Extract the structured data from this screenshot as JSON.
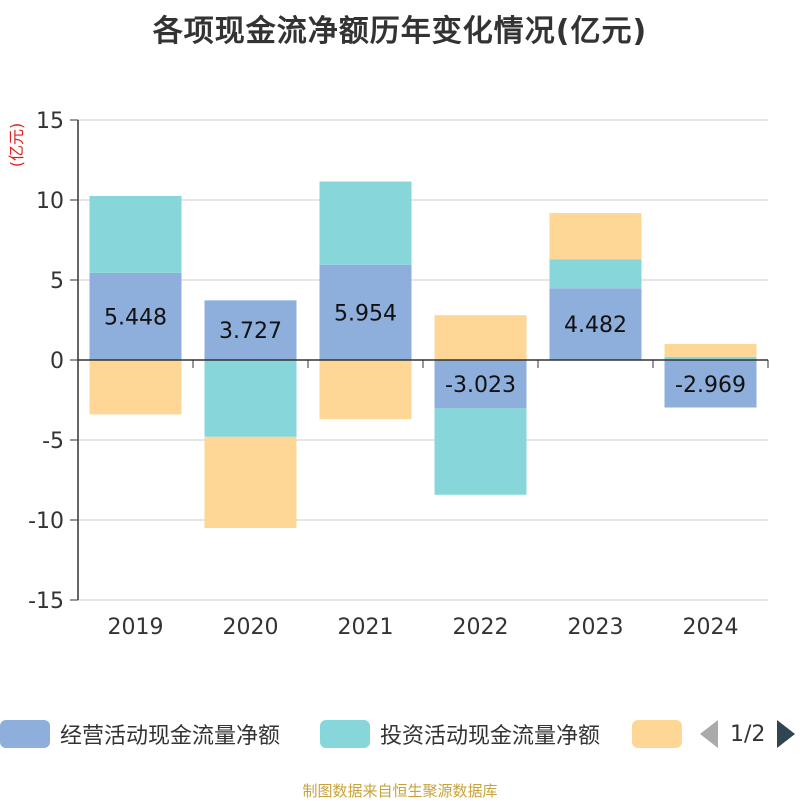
{
  "title": "各项现金流净额历年变化情况(亿元)",
  "chart_data": {
    "type": "bar",
    "stacked": true,
    "title": "各项现金流净额历年变化情况(亿元)",
    "ylabel": "(亿元)",
    "xlabel": "",
    "ylim": [
      -15,
      15
    ],
    "yticks": [
      15,
      10,
      5,
      0,
      -5,
      -10,
      -15
    ],
    "grid": true,
    "categories": [
      "2019",
      "2020",
      "2021",
      "2022",
      "2023",
      "2024"
    ],
    "series": [
      {
        "name": "经营活动现金流量净额",
        "color": "#8eaedb",
        "values": [
          5.448,
          3.727,
          5.954,
          -3.023,
          4.482,
          -2.969
        ],
        "labels": [
          "5.448",
          "3.727",
          "5.954",
          "-3.023",
          "4.482",
          "-2.969"
        ]
      },
      {
        "name": "投资活动现金流量净额",
        "color": "#87d6d9",
        "values": [
          4.8,
          -4.8,
          5.2,
          -5.4,
          1.8,
          0.2
        ]
      },
      {
        "name": "",
        "color": "#fed796",
        "values": [
          -3.4,
          -5.7,
          -3.7,
          2.8,
          2.9,
          0.8
        ]
      }
    ],
    "legend_position": "bottom"
  },
  "legend": {
    "items": [
      {
        "label": "经营活动现金流量净额",
        "color": "#8eaedb"
      },
      {
        "label": "投资活动现金流量净额",
        "color": "#87d6d9"
      },
      {
        "label": "",
        "color": "#fed796"
      }
    ],
    "pager_text": "1/2"
  },
  "footer": {
    "source": "制图数据来自恒生聚源数据库"
  },
  "colors": {
    "axis": "#333333",
    "grid": "#cccccc",
    "ylabel": "#e0201c",
    "text": "#333333"
  }
}
